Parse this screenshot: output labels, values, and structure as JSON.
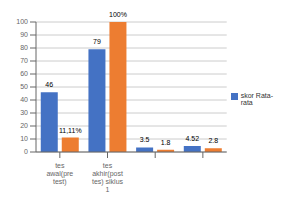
{
  "chart_data": {
    "type": "bar",
    "categories": [
      "tes\nawal(pre\ntest)",
      "tes\nakhir(post\ntes) siklus\n1",
      null,
      null
    ],
    "series": [
      {
        "name": "skor Rata-\nrata",
        "color": "#4472C4",
        "values": [
          46,
          79,
          3.5,
          4.52
        ]
      },
      {
        "color": "#ED7D31",
        "values": [
          11.11,
          100,
          1.8,
          2.8
        ],
        "value_labels": [
          "11,11%",
          "100%",
          "1.8",
          "2.8"
        ]
      }
    ],
    "ylim": [
      0,
      100
    ],
    "yticks": [
      0,
      10,
      20,
      30,
      40,
      50,
      60,
      70,
      80,
      90,
      100
    ],
    "grid": true,
    "legend": "center right",
    "data_labels": true
  }
}
